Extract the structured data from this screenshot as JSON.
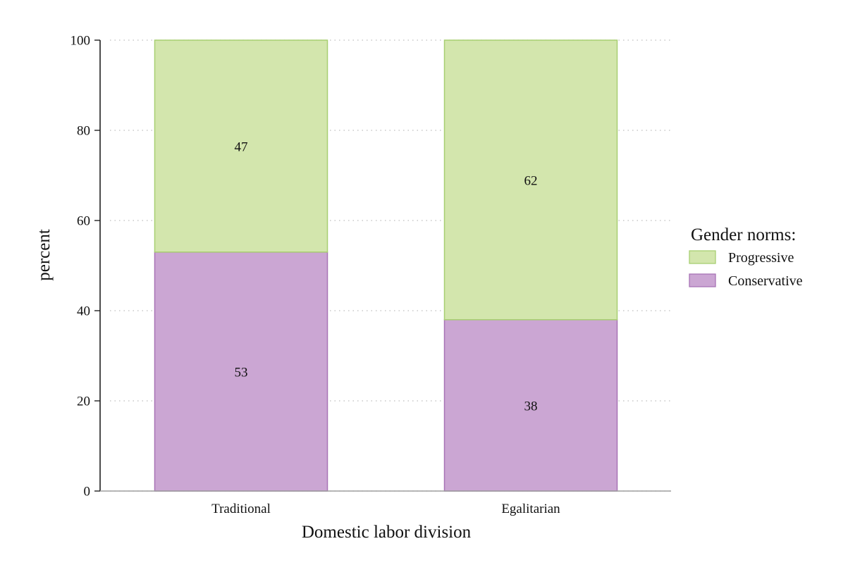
{
  "chart_data": {
    "type": "bar",
    "stacked": true,
    "categories": [
      "Traditional",
      "Egalitarian"
    ],
    "series": [
      {
        "name": "Conservative",
        "values": [
          53,
          38
        ],
        "labels": [
          "53",
          "38"
        ],
        "color": "#cba6d3",
        "edge_color": "#a873b5"
      },
      {
        "name": "Progressive",
        "values": [
          47,
          62
        ],
        "labels": [
          "47",
          "62"
        ],
        "color": "#d3e6ad",
        "edge_color": "#a8cf72"
      }
    ],
    "xlabel": "Domestic labor division",
    "ylabel": "percent",
    "ylim": [
      0,
      100
    ],
    "yticks": [
      0,
      20,
      40,
      60,
      80,
      100
    ],
    "ytick_labels": [
      "0",
      "20",
      "40",
      "60",
      "80",
      "100"
    ],
    "grid": "horizontal-dotted",
    "legend": {
      "title": "Gender norms:",
      "placement": "right",
      "order": [
        "Progressive",
        "Conservative"
      ]
    }
  }
}
